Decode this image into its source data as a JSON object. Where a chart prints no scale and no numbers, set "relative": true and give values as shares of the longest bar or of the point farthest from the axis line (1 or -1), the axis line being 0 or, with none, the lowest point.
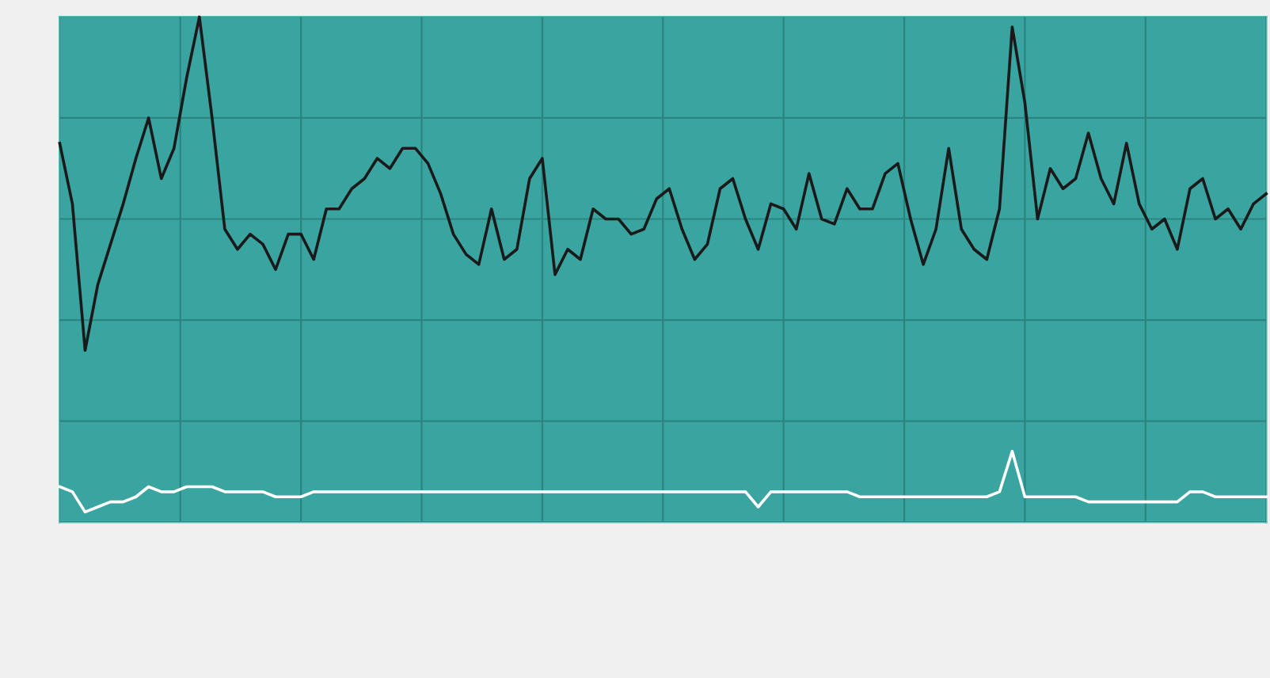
{
  "chart_data": {
    "type": "line",
    "relative": true,
    "grid": true,
    "tick_labels": false,
    "legend": false,
    "categories": [
      null,
      null,
      null,
      null,
      null,
      null,
      null,
      null,
      null,
      null,
      null,
      null,
      null,
      null,
      null,
      null,
      null,
      null,
      null,
      null,
      null,
      null,
      null,
      null,
      null,
      null,
      null,
      null,
      null,
      null,
      null,
      null,
      null,
      null,
      null,
      null,
      null,
      null,
      null,
      null,
      null,
      null,
      null,
      null,
      null,
      null,
      null,
      null,
      null,
      null,
      null,
      null,
      null,
      null,
      null,
      null,
      null,
      null,
      null,
      null,
      null,
      null,
      null,
      null,
      null,
      null,
      null,
      null,
      null,
      null,
      null,
      null,
      null,
      null,
      null,
      null,
      null,
      null,
      null,
      null,
      null,
      null,
      null,
      null,
      null,
      null,
      null,
      null,
      null,
      null,
      null,
      null,
      null,
      null,
      null,
      null
    ],
    "series": [
      {
        "color": "#1a1a1a",
        "values": [
          0.75,
          0.63,
          0.34,
          0.47,
          0.55,
          0.63,
          0.72,
          0.8,
          0.68,
          0.74,
          0.88,
          1.0,
          0.8,
          0.58,
          0.54,
          0.57,
          0.55,
          0.5,
          0.57,
          0.57,
          0.52,
          0.62,
          0.62,
          0.66,
          0.68,
          0.72,
          0.7,
          0.74,
          0.74,
          0.71,
          0.65,
          0.57,
          0.53,
          0.51,
          0.62,
          0.52,
          0.54,
          0.68,
          0.72,
          0.49,
          0.54,
          0.52,
          0.62,
          0.6,
          0.6,
          0.57,
          0.58,
          0.64,
          0.66,
          0.58,
          0.52,
          0.55,
          0.66,
          0.68,
          0.6,
          0.54,
          0.63,
          0.62,
          0.58,
          0.69,
          0.6,
          0.59,
          0.66,
          0.62,
          0.62,
          0.69,
          0.71,
          0.6,
          0.51,
          0.58,
          0.74,
          0.58,
          0.54,
          0.52,
          0.62,
          0.98,
          0.83,
          0.6,
          0.7,
          0.66,
          0.68,
          0.77,
          0.68,
          0.63,
          0.75,
          0.63,
          0.58,
          0.6,
          0.54,
          0.66,
          0.68,
          0.6,
          0.62,
          0.58,
          0.63,
          0.65
        ]
      },
      {
        "color": "#ffffff",
        "values": [
          0.07,
          0.06,
          0.02,
          0.03,
          0.04,
          0.04,
          0.05,
          0.07,
          0.06,
          0.06,
          0.07,
          0.07,
          0.07,
          0.06,
          0.06,
          0.06,
          0.06,
          0.05,
          0.05,
          0.05,
          0.06,
          0.06,
          0.06,
          0.06,
          0.06,
          0.06,
          0.06,
          0.06,
          0.06,
          0.06,
          0.06,
          0.06,
          0.06,
          0.06,
          0.06,
          0.06,
          0.06,
          0.06,
          0.06,
          0.06,
          0.06,
          0.06,
          0.06,
          0.06,
          0.06,
          0.06,
          0.06,
          0.06,
          0.06,
          0.06,
          0.06,
          0.06,
          0.06,
          0.06,
          0.06,
          0.03,
          0.06,
          0.06,
          0.06,
          0.06,
          0.06,
          0.06,
          0.06,
          0.05,
          0.05,
          0.05,
          0.05,
          0.05,
          0.05,
          0.05,
          0.05,
          0.05,
          0.05,
          0.05,
          0.06,
          0.14,
          0.05,
          0.05,
          0.05,
          0.05,
          0.05,
          0.04,
          0.04,
          0.04,
          0.04,
          0.04,
          0.04,
          0.04,
          0.04,
          0.06,
          0.06,
          0.05,
          0.05,
          0.05,
          0.05,
          0.05
        ]
      }
    ]
  }
}
